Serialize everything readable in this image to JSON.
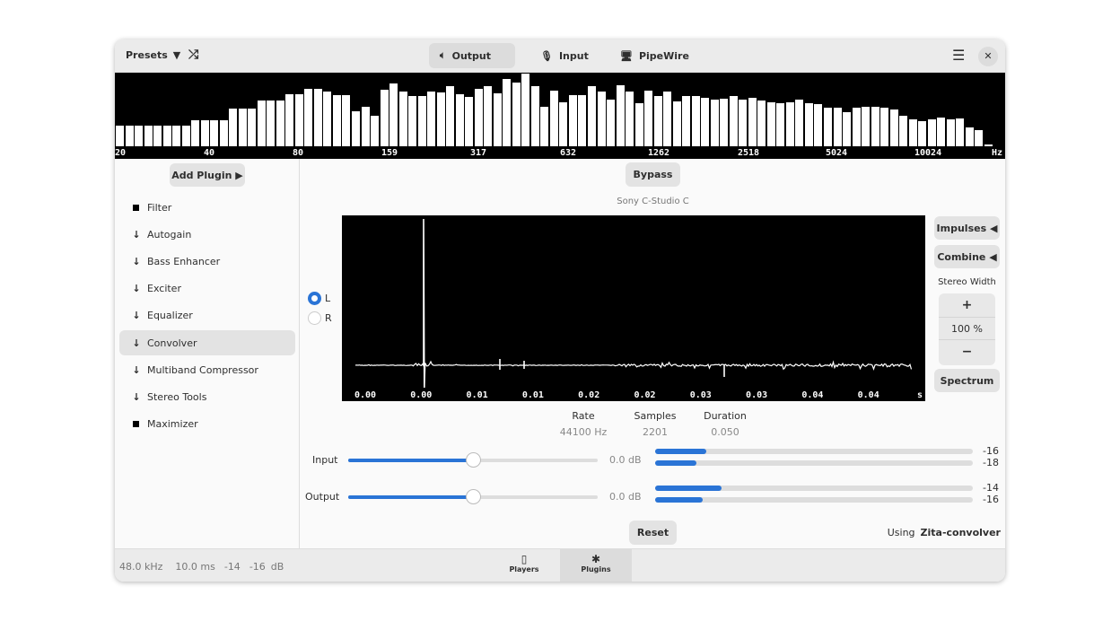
{
  "header": {
    "presets": "Presets",
    "tabs": [
      {
        "label": "Output",
        "icon": "speaker-icon",
        "active": true
      },
      {
        "label": "Input",
        "icon": "microphone-icon"
      },
      {
        "label": "PipeWire",
        "icon": "monitor-icon"
      }
    ]
  },
  "spectrum": {
    "labels": [
      "20",
      "40",
      "80",
      "159",
      "317",
      "632",
      "1262",
      "2518",
      "5024",
      "10024",
      "Hz"
    ],
    "levels": [
      0.28,
      0.28,
      0.28,
      0.28,
      0.28,
      0.28,
      0.28,
      0.28,
      0.35,
      0.35,
      0.35,
      0.35,
      0.51,
      0.51,
      0.51,
      0.62,
      0.62,
      0.62,
      0.71,
      0.71,
      0.78,
      0.78,
      0.75,
      0.69,
      0.69,
      0.48,
      0.54,
      0.42,
      0.77,
      0.85,
      0.75,
      0.68,
      0.68,
      0.75,
      0.73,
      0.82,
      0.71,
      0.67,
      0.78,
      0.82,
      0.72,
      0.92,
      0.87,
      0.99,
      0.82,
      0.54,
      0.76,
      0.6,
      0.7,
      0.69,
      0.82,
      0.74,
      0.64,
      0.83,
      0.75,
      0.59,
      0.76,
      0.68,
      0.75,
      0.61,
      0.68,
      0.68,
      0.66,
      0.64,
      0.65,
      0.68,
      0.64,
      0.66,
      0.62,
      0.6,
      0.58,
      0.6,
      0.63,
      0.58,
      0.57,
      0.52,
      0.52,
      0.46,
      0.52,
      0.54,
      0.54,
      0.52,
      0.5,
      0.42,
      0.36,
      0.34,
      0.36,
      0.39,
      0.36,
      0.38,
      0.26,
      0.22,
      0.02
    ]
  },
  "sidebar": {
    "add_plugin": "Add Plugin",
    "items": [
      {
        "label": "Filter",
        "icon": "square"
      },
      {
        "label": "Autogain",
        "icon": "arrow"
      },
      {
        "label": "Bass Enhancer",
        "icon": "arrow"
      },
      {
        "label": "Exciter",
        "icon": "arrow"
      },
      {
        "label": "Equalizer",
        "icon": "arrow"
      },
      {
        "label": "Convolver",
        "icon": "arrow",
        "selected": true
      },
      {
        "label": "Multiband Compressor",
        "icon": "arrow"
      },
      {
        "label": "Stereo Tools",
        "icon": "arrow"
      },
      {
        "label": "Maximizer",
        "icon": "square"
      }
    ]
  },
  "convolver": {
    "bypass": "Bypass",
    "impulse_name": "Sony C-Studio C",
    "channels": {
      "left": "L",
      "right": "R",
      "selected": "L"
    },
    "time_ticks": [
      "0.00",
      "0.00",
      "0.01",
      "0.01",
      "0.02",
      "0.02",
      "0.03",
      "0.03",
      "0.04",
      "0.04",
      "s"
    ],
    "impulses": "Impulses",
    "combine": "Combine",
    "stereo_width_label": "Stereo Width",
    "stereo_width": "100 %",
    "plus": "+",
    "minus": "−",
    "spectrum": "Spectrum",
    "info": {
      "rate_label": "Rate",
      "rate": "44100 Hz",
      "samples_label": "Samples",
      "samples": "2201",
      "duration_label": "Duration",
      "duration": "0.050"
    },
    "input": {
      "label": "Input",
      "value": "0.0 dB",
      "position": 0.5,
      "meters": [
        {
          "value": "-16",
          "level": 0.16
        },
        {
          "value": "-18",
          "level": 0.13
        }
      ]
    },
    "output": {
      "label": "Output",
      "value": "0.0 dB",
      "position": 0.5,
      "meters": [
        {
          "value": "-14",
          "level": 0.21
        },
        {
          "value": "-16",
          "level": 0.15
        }
      ]
    },
    "reset": "Reset",
    "using_label": "Using",
    "using": "Zita-convolver"
  },
  "footer": {
    "rate": "48.0 kHz",
    "latency": "10.0 ms",
    "left": "-14",
    "right": "-16",
    "unit": "dB",
    "tabs": [
      {
        "label": "Players"
      },
      {
        "label": "Plugins",
        "active": true
      }
    ]
  },
  "colors": {
    "accent": "#2a74d6"
  }
}
